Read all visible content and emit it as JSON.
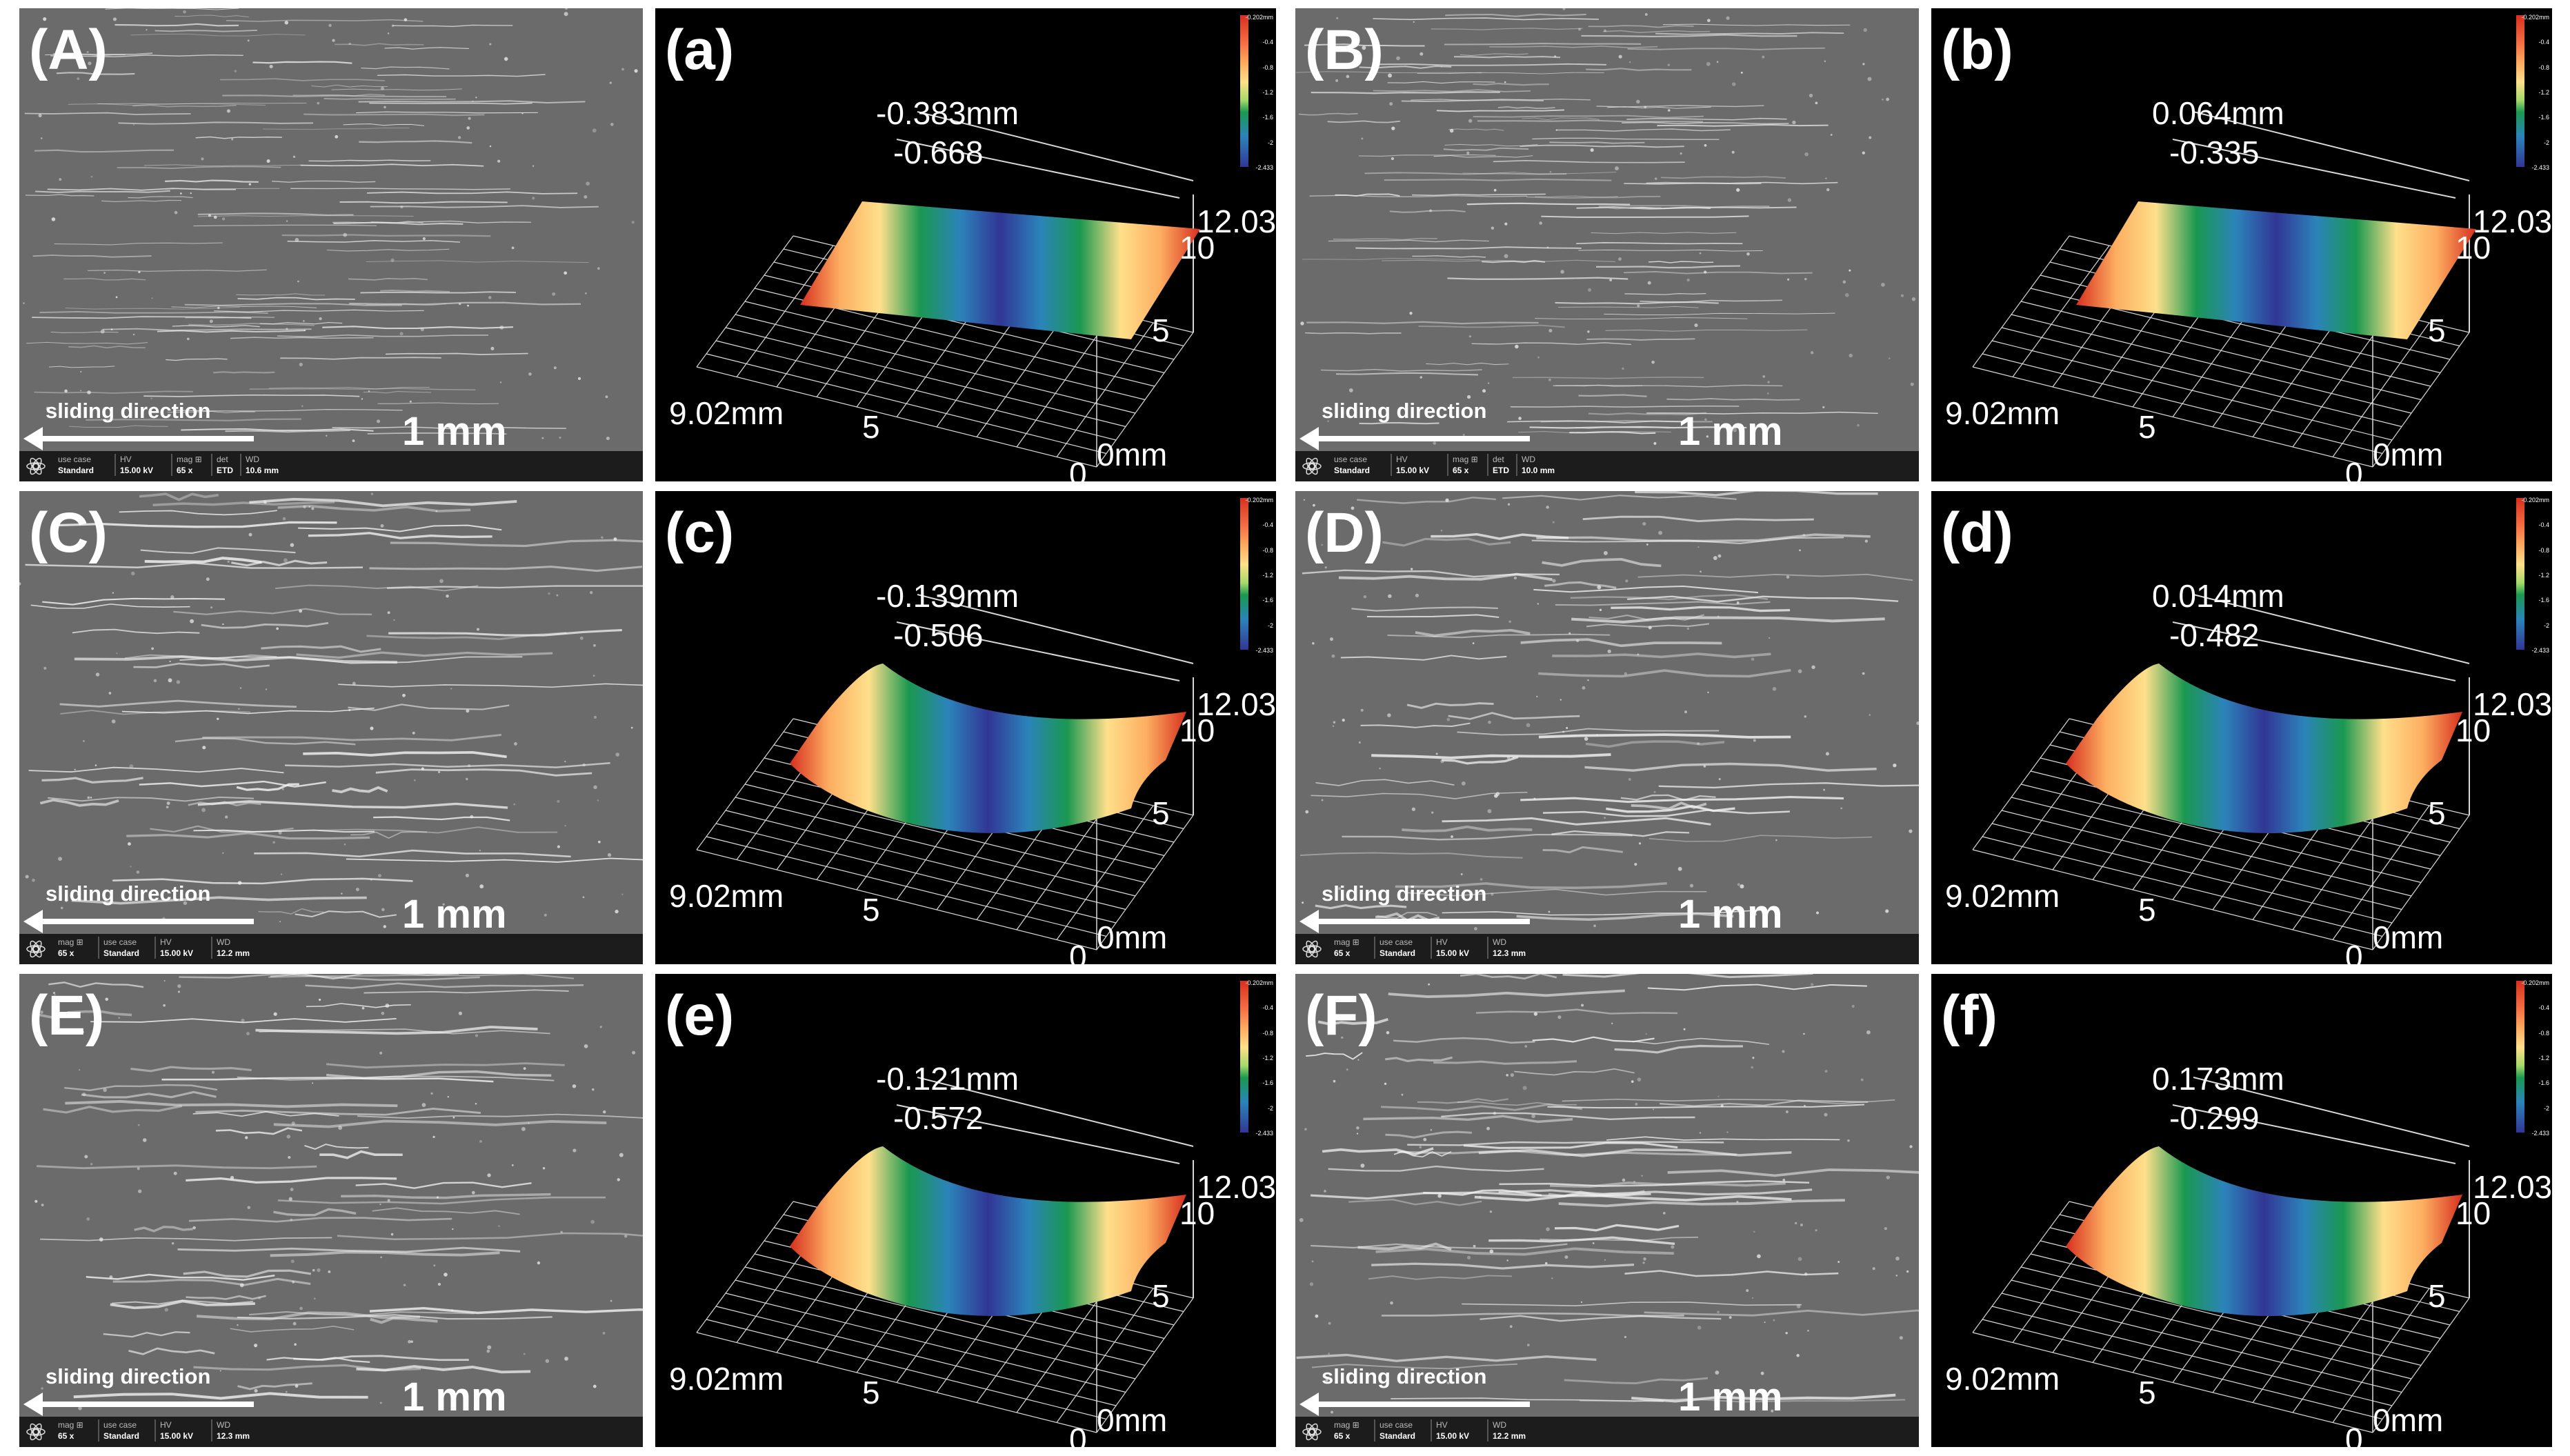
{
  "common": {
    "sliding_direction": "sliding direction",
    "scale": "1 mm",
    "axis_x_end": "9.02mm",
    "axis_y_end": "12.031",
    "axis_y_mid": "10",
    "axis_y_low": "5",
    "axis_x_mid": "5",
    "axis_zero_mm": "0mm",
    "axis_zero": "0",
    "colorbar_ticks": [
      "-0.202mm",
      "-0.4",
      "-0.8",
      "-1.2",
      "-1.6",
      "-2",
      "-2.433"
    ]
  },
  "sem_panels": [
    {
      "label": "(A)",
      "info": [
        [
          "use case",
          "Standard"
        ],
        [
          "HV",
          "15.00 kV"
        ],
        [
          "mag ⊞",
          "65 x"
        ],
        [
          "det",
          "ETD"
        ],
        [
          "WD",
          "10.6 mm"
        ]
      ],
      "streak_color": "#e6e6e6"
    },
    {
      "label": "(B)",
      "info": [
        [
          "use case",
          "Standard"
        ],
        [
          "HV",
          "15.00 kV"
        ],
        [
          "mag ⊞",
          "65 x"
        ],
        [
          "det",
          "ETD"
        ],
        [
          "WD",
          "10.0 mm"
        ]
      ],
      "streak_color": "#e6e6e6"
    },
    {
      "label": "(C)",
      "info": [
        [
          "mag ⊞",
          "65 x"
        ],
        [
          "use case",
          "Standard"
        ],
        [
          "HV",
          "15.00 kV"
        ],
        [
          "WD",
          "12.2 mm"
        ]
      ],
      "streak_color": "#f2f2f2"
    },
    {
      "label": "(D)",
      "info": [
        [
          "mag ⊞",
          "65 x"
        ],
        [
          "use case",
          "Standard"
        ],
        [
          "HV",
          "15.00 kV"
        ],
        [
          "WD",
          "12.3 mm"
        ]
      ],
      "streak_color": "#f2f2f2"
    },
    {
      "label": "(E)",
      "info": [
        [
          "mag ⊞",
          "65 x"
        ],
        [
          "use case",
          "Standard"
        ],
        [
          "HV",
          "15.00 kV"
        ],
        [
          "WD",
          "12.3 mm"
        ]
      ],
      "streak_color": "#f2f2f2"
    },
    {
      "label": "(F)",
      "info": [
        [
          "mag ⊞",
          "65 x"
        ],
        [
          "use case",
          "Standard"
        ],
        [
          "HV",
          "15.00 kV"
        ],
        [
          "WD",
          "12.2 mm"
        ]
      ],
      "streak_color": "#f2f2f2"
    }
  ],
  "profile_panels": [
    {
      "label": "(a)",
      "top_value": "-0.383mm",
      "second_value": "-0.668",
      "shape": "flat-groove"
    },
    {
      "label": "(b)",
      "top_value": "0.064mm",
      "second_value": "-0.335",
      "shape": "flat-groove"
    },
    {
      "label": "(c)",
      "top_value": "-0.139mm",
      "second_value": "-0.506",
      "shape": "curved"
    },
    {
      "label": "(d)",
      "top_value": "0.014mm",
      "second_value": "-0.482",
      "shape": "curved"
    },
    {
      "label": "(e)",
      "top_value": "-0.121mm",
      "second_value": "-0.572",
      "shape": "curved"
    },
    {
      "label": "(f)",
      "top_value": "0.173mm",
      "second_value": "-0.299",
      "shape": "curved"
    }
  ],
  "colors": {
    "sem_background": "#6b6b6b",
    "profile_background": "#000000",
    "grid": "#d9d9d9",
    "gradient": [
      "#d7301f",
      "#f46d43",
      "#fdae61",
      "#fee08b",
      "#a6d96a",
      "#1a9850",
      "#2b83ba",
      "#313695"
    ]
  }
}
